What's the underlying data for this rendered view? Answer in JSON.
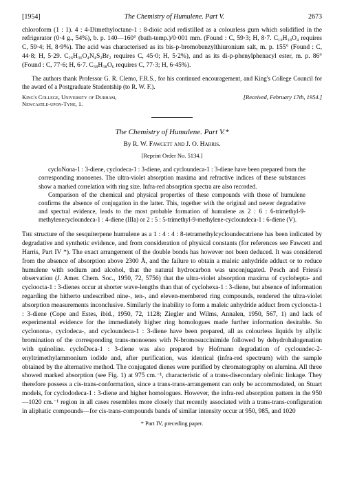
{
  "header": {
    "year": "[1954]",
    "running_title": "The Chemistry of Humulene. Part V.",
    "page_number": "2673"
  },
  "top_section": {
    "para1": "chloroform (1 : 1). 4 : 4-Dimethyloctane-1 : 8-dioic acid redistilled as a colourless gum which solidified in the refrigerator (0·4 g., 54%), b. p. 140—160° (bath-temp.)/0·001 mm. (Found : C, 59·3; H, 8·7. C₁₀H₁₈O₄ requires C, 59·4; H, 8·9%). The acid was characterised as its bis-p-bromobenzylthiuronium salt, m. p. 155° (Found : C, 44·8; H, 5·29. C₂₆H₃₆O₄N₄S₂Br₂ requires C, 45·0; H, 5·2%), and as its di-p-phenylphenacyl ester, m. p. 86° (Found : C, 77·6; H, 6·7. C₃₈H₃₈O₆ requires C, 77·3; H, 6·45%).",
    "acknowledgment": "The authors thank Professor G. R. Clemo, F.R.S., for his continued encouragement, and King's College Council for the award of a Postgraduate Studentship (to R. W. F.).",
    "affiliation_left_line1": "King's College, University of Durham,",
    "affiliation_left_line2": "Newcastle-upon-Tyne, 1.",
    "received": "[Received, February 17th, 1954.]"
  },
  "article": {
    "title": "The Chemistry of Humulene. Part V.*",
    "authors_prefix": "By ",
    "authors": "R. W. Fawcett and J. O. Harris.",
    "reprint": "[Reprint Order No. 5134.]",
    "abstract_p1": "cycloNona-1 : 3-diene, cyclodeca-1 : 3-diene, and cycloundeca-1 : 3-diene have been prepared from the corresponding monoenes. The ultra-violet absorption maxima and refractive indices of these substances show a marked correlation with ring size. Infra-red absorption spectra are also recorded.",
    "abstract_p2": "Comparison of the chemical and physical properties of these compounds with those of humulene confirms the absence of conjugation in the latter. This, together with the original and newer degradative and spectral evidence, leads to the most probable formation of humulene as 2 : 6 : 6-trimethyl-9-methylenecycloundeca-1 : 4-diene (IIIa) or 2 : 5 : 5-trimethyl-9-methylene-cycloundeca-1 : 6-diene (V).",
    "body": "The structure of the sesquiterpene humulene as a 1 : 4 : 4 : 8-tetramethylcycloundecatriene has been indicated by degradative and synthetic evidence, and from consideration of physical constants (for references see Fawcett and Harris, Part IV *). The exact arrangement of the double bonds has however not been deduced. It was considered from the absence of absorption above 2300 Å, and the failure to obtain a maleic anhydride adduct or to reduce humulene with sodium and alcohol, that the natural hydrocarbon was unconjugated. Pesch and Friess's observation (J. Amer. Chem. Soc., 1950, 72, 5756) that the ultra-violet absorption maxima of cyclohepta- and cycloocta-1 : 3-dienes occur at shorter wave-lengths than that of cyclohexa-1 : 3-diene, but absence of information regarding the hitherto undescribed nine-, ten-, and eleven-membered ring compounds, rendered the ultra-violet absorption measurements inconclusive. Similarly the inability to form a maleic anhydride adduct from cycloocta-1 : 3-diene (Cope and Estes, ibid., 1950, 72, 1128; Ziegler and Wilms, Annalen, 1950, 567, 1) and lack of experimental evidence for the immediately higher ring homologues made further information desirable. So cyclonona-, cyclodeca-, and cycloundeca-1 : 3-diene have been prepared, all as colourless liquids by allylic bromination of the corresponding trans-monoenes with N-bromosuccinimide followed by dehydrohalogenation with quinoline. cycloDeca-1 : 3-diene was also prepared by Hofmann degradation of cycloundec-2-enyltrimethylammonium iodide and, after purification, was identical (infra-red spectrum) with the sample obtained by the alternative method. The conjugated dienes were purified by chromatography on alumina. All three showed marked absorption (see Fig. 1) at 975 cm.⁻¹, characteristic of a trans-disecondary olefinic linkage. They therefore possess a cis-trans-conformation, since a trans-trans-arrangement can only be accommodated, on Stuart models, for cyclododeca-1 : 3-diene and higher homologues. However, the infra-red absorption pattern in the 950—1020 cm.⁻¹ region in all cases resembles more closely that recently associated with a trans-trans-configuration in aliphatic compounds—for cis-trans-compounds bands of similar intensity occur at 950, 985, and 1020",
    "footnote": "* Part IV, preceding paper."
  }
}
